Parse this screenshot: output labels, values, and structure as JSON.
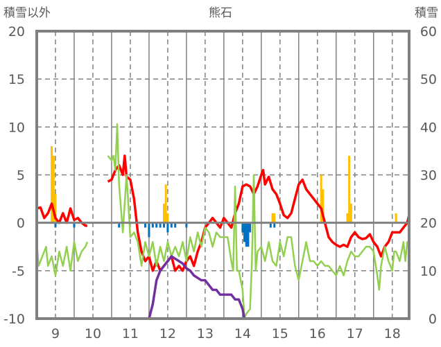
{
  "chart_data": {
    "type": "line",
    "title": "熊石",
    "ylabel_left": "積雪以外",
    "ylabel_right": "積雪",
    "xlim": [
      8.5,
      18.45
    ],
    "ylim_left": [
      -10,
      20
    ],
    "ylim_right": [
      0,
      60
    ],
    "xticks": [
      "9",
      "10",
      "11",
      "12",
      "13",
      "14",
      "15",
      "16",
      "17",
      "18"
    ],
    "yticks_left": [
      "20",
      "15",
      "10",
      "5",
      "0",
      "-5",
      "-10"
    ],
    "yticks_right": [
      "60",
      "50",
      "40",
      "30",
      "20",
      "10",
      "0"
    ],
    "grid": true,
    "colors": {
      "red": "#ff0000",
      "green": "#92d050",
      "purple": "#7030a0",
      "orange": "#ffc000",
      "blue": "#0070c0",
      "axis": "#808080"
    },
    "series": [
      {
        "name": "red",
        "axis": "left",
        "segments": [
          [
            [
              8.5,
              1.5
            ],
            [
              8.6,
              1.6
            ],
            [
              8.7,
              0.5
            ],
            [
              8.8,
              1
            ],
            [
              8.9,
              2
            ],
            [
              9.0,
              0.5
            ],
            [
              9.1,
              0
            ],
            [
              9.2,
              1
            ],
            [
              9.3,
              0
            ],
            [
              9.4,
              1.5
            ],
            [
              9.5,
              0.3
            ],
            [
              9.6,
              0.5
            ],
            [
              9.7,
              0
            ],
            [
              9.8,
              -0.3
            ],
            [
              9.85,
              -0.3
            ]
          ],
          [
            [
              10.4,
              4.3
            ],
            [
              10.5,
              4.5
            ],
            [
              10.6,
              5.5
            ],
            [
              10.7,
              6
            ],
            [
              10.8,
              5
            ],
            [
              10.85,
              7
            ],
            [
              10.9,
              4.8
            ],
            [
              11.0,
              4.5
            ],
            [
              11.1,
              2.5
            ],
            [
              11.2,
              -1
            ],
            [
              11.3,
              -3
            ],
            [
              11.4,
              -4
            ],
            [
              11.5,
              -3.5
            ],
            [
              11.6,
              -5
            ],
            [
              11.7,
              -4
            ],
            [
              11.8,
              -5
            ],
            [
              11.9,
              -4.5
            ],
            [
              12.0,
              -4
            ],
            [
              12.1,
              -3.5
            ],
            [
              12.2,
              -5
            ],
            [
              12.3,
              -4.5
            ],
            [
              12.4,
              -5
            ],
            [
              12.5,
              -4
            ],
            [
              12.6,
              -3.5
            ],
            [
              12.7,
              -4.5
            ],
            [
              12.8,
              -3
            ],
            [
              12.9,
              -2
            ],
            [
              13.0,
              -0.5
            ],
            [
              13.1,
              0
            ],
            [
              13.2,
              0.5
            ],
            [
              13.3,
              0
            ],
            [
              13.4,
              -0.5
            ],
            [
              13.5,
              0.5
            ],
            [
              13.6,
              0
            ],
            [
              13.7,
              -0.5
            ],
            [
              13.8,
              1
            ],
            [
              13.9,
              2
            ],
            [
              14.0,
              3.8
            ],
            [
              14.1,
              4
            ],
            [
              14.2,
              3.8
            ],
            [
              14.3,
              3
            ],
            [
              14.4,
              3.8
            ],
            [
              14.5,
              5
            ],
            [
              14.55,
              5.5
            ],
            [
              14.6,
              4
            ],
            [
              14.7,
              4.8
            ],
            [
              14.8,
              3.5
            ],
            [
              14.9,
              3
            ],
            [
              15.0,
              2
            ],
            [
              15.1,
              0.8
            ],
            [
              15.2,
              0.5
            ],
            [
              15.3,
              1
            ],
            [
              15.4,
              2.5
            ],
            [
              15.5,
              4
            ],
            [
              15.6,
              4.5
            ],
            [
              15.7,
              3.5
            ],
            [
              15.8,
              3
            ],
            [
              15.9,
              2.5
            ],
            [
              16.0,
              2
            ],
            [
              16.1,
              1.5
            ],
            [
              16.2,
              0
            ],
            [
              16.3,
              -1.5
            ],
            [
              16.4,
              -2
            ],
            [
              16.5,
              -2.3
            ],
            [
              16.6,
              -2.5
            ],
            [
              16.7,
              -2.3
            ],
            [
              16.8,
              -2.5
            ],
            [
              16.9,
              -1.5
            ],
            [
              17.0,
              -1
            ],
            [
              17.1,
              -1.5
            ],
            [
              17.2,
              -1.7
            ],
            [
              17.3,
              -1.6
            ],
            [
              17.4,
              -1.2
            ],
            [
              17.5,
              -2
            ],
            [
              17.6,
              -2.5
            ],
            [
              17.7,
              -3.5
            ],
            [
              17.8,
              -2.5
            ],
            [
              17.9,
              -2
            ],
            [
              18.0,
              -1
            ],
            [
              18.1,
              -1
            ],
            [
              18.2,
              -1
            ],
            [
              18.3,
              -0.5
            ],
            [
              18.4,
              0
            ],
            [
              18.45,
              0.8
            ]
          ]
        ]
      },
      {
        "name": "green",
        "axis": "left",
        "segments": [
          [
            [
              8.5,
              -2
            ],
            [
              8.55,
              -4.5
            ],
            [
              8.65,
              -3.5
            ],
            [
              8.75,
              -2.5
            ],
            [
              8.8,
              -4.5
            ],
            [
              8.9,
              -3.5
            ],
            [
              9.0,
              -5.5
            ],
            [
              9.1,
              -3
            ],
            [
              9.2,
              -4.5
            ],
            [
              9.3,
              -2.5
            ],
            [
              9.4,
              -5
            ],
            [
              9.5,
              -2
            ],
            [
              9.6,
              -4
            ],
            [
              9.7,
              -3
            ],
            [
              9.8,
              -2.5
            ],
            [
              9.85,
              -2
            ]
          ],
          [
            [
              10.4,
              7
            ],
            [
              10.5,
              6.5
            ],
            [
              10.55,
              7
            ],
            [
              10.6,
              5.5
            ],
            [
              10.65,
              10.3
            ],
            [
              10.7,
              4
            ],
            [
              10.8,
              -1
            ],
            [
              10.9,
              5
            ],
            [
              11.0,
              -1.5
            ],
            [
              11.1,
              -1
            ],
            [
              11.2,
              -2
            ],
            [
              11.3,
              -4.5
            ],
            [
              11.4,
              -2
            ],
            [
              11.5,
              -3.5
            ],
            [
              11.6,
              -2
            ],
            [
              11.7,
              -4.5
            ],
            [
              11.8,
              -2.5
            ],
            [
              11.9,
              -4
            ],
            [
              12.0,
              -2
            ],
            [
              12.1,
              -3.5
            ],
            [
              12.2,
              -2.5
            ],
            [
              12.3,
              -3.5
            ],
            [
              12.4,
              -2
            ],
            [
              12.5,
              -4
            ],
            [
              12.6,
              -1.5
            ],
            [
              12.7,
              -3
            ],
            [
              12.8,
              -1
            ],
            [
              12.9,
              -2.5
            ],
            [
              13.0,
              -0.5
            ],
            [
              13.1,
              -1
            ],
            [
              13.2,
              -2.5
            ],
            [
              13.3,
              -1
            ],
            [
              13.4,
              -1.5
            ],
            [
              13.5,
              -1.5
            ],
            [
              13.6,
              -1.5
            ],
            [
              13.7,
              -4
            ],
            [
              13.75,
              -5
            ],
            [
              13.8,
              3.8
            ],
            [
              13.85,
              -5
            ],
            [
              13.9,
              -5
            ],
            [
              14.0,
              -7
            ],
            [
              14.05,
              -9.9
            ],
            [
              14.1,
              -9.5
            ],
            [
              14.2,
              -9
            ],
            [
              14.25,
              -4
            ],
            [
              14.3,
              5
            ],
            [
              14.35,
              -5
            ],
            [
              14.4,
              -3
            ],
            [
              14.5,
              -2.5
            ],
            [
              14.6,
              -4
            ],
            [
              14.7,
              -2
            ],
            [
              14.8,
              -4
            ],
            [
              14.9,
              -4.5
            ],
            [
              15.0,
              -2
            ],
            [
              15.1,
              -3.5
            ],
            [
              15.2,
              -1.5
            ],
            [
              15.3,
              -1.5
            ],
            [
              15.4,
              -4.5
            ],
            [
              15.5,
              -6
            ],
            [
              15.6,
              -4
            ],
            [
              15.7,
              -2
            ],
            [
              15.8,
              -4
            ],
            [
              15.9,
              -4
            ],
            [
              16.0,
              -4.5
            ],
            [
              16.1,
              -4
            ],
            [
              16.2,
              -4.5
            ],
            [
              16.3,
              -4.5
            ],
            [
              16.4,
              -5
            ],
            [
              16.5,
              -5.5
            ],
            [
              16.6,
              -4.5
            ],
            [
              16.7,
              -5.5
            ],
            [
              16.8,
              -4
            ],
            [
              16.9,
              -3
            ],
            [
              17.0,
              -3.5
            ],
            [
              17.1,
              -3.5
            ],
            [
              17.2,
              -3
            ],
            [
              17.3,
              -2.5
            ],
            [
              17.4,
              -2.5
            ],
            [
              17.5,
              -3
            ],
            [
              17.6,
              -5.5
            ],
            [
              17.65,
              -7
            ],
            [
              17.7,
              -4.5
            ],
            [
              17.8,
              -2.5
            ],
            [
              17.9,
              -4
            ],
            [
              18.0,
              -5
            ],
            [
              18.05,
              -3
            ],
            [
              18.1,
              -3
            ],
            [
              18.2,
              -4
            ],
            [
              18.3,
              -2
            ],
            [
              18.35,
              -4
            ],
            [
              18.4,
              -2
            ],
            [
              18.45,
              -2.5
            ]
          ]
        ]
      },
      {
        "name": "purple",
        "axis": "right",
        "segments": [
          [
            [
              8.5,
              0
            ],
            [
              9.85,
              0
            ]
          ],
          [
            [
              10.1,
              0
            ],
            [
              11.5,
              0
            ],
            [
              11.6,
              3
            ],
            [
              11.7,
              8
            ],
            [
              11.8,
              10
            ],
            [
              11.9,
              11
            ],
            [
              12.0,
              12
            ],
            [
              12.1,
              13
            ],
            [
              12.2,
              12.5
            ],
            [
              12.3,
              12
            ],
            [
              12.4,
              11.5
            ],
            [
              12.5,
              10.5
            ],
            [
              12.6,
              10
            ],
            [
              12.7,
              9
            ],
            [
              12.8,
              8.5
            ],
            [
              12.9,
              8
            ],
            [
              13.0,
              8
            ],
            [
              13.1,
              7
            ],
            [
              13.2,
              6
            ],
            [
              13.3,
              6
            ],
            [
              13.4,
              5
            ],
            [
              13.7,
              5
            ],
            [
              13.8,
              4
            ],
            [
              13.9,
              4
            ],
            [
              14.0,
              2
            ],
            [
              14.05,
              0
            ],
            [
              18.45,
              0
            ]
          ]
        ]
      }
    ],
    "bars": [
      {
        "name": "orange",
        "axis": "left",
        "points": [
          [
            8.9,
            8
          ],
          [
            8.95,
            7
          ],
          [
            9.0,
            3
          ],
          [
            11.9,
            2
          ],
          [
            11.95,
            4
          ],
          [
            12.0,
            1
          ],
          [
            14.8,
            1
          ],
          [
            14.85,
            1
          ],
          [
            16.1,
            5
          ],
          [
            16.15,
            3.5
          ],
          [
            16.8,
            1
          ],
          [
            16.85,
            7
          ],
          [
            16.9,
            2
          ],
          [
            18.1,
            1
          ]
        ]
      },
      {
        "name": "blue",
        "axis": "left",
        "points": [
          [
            9.0,
            -0.5
          ],
          [
            9.5,
            -0.5
          ],
          [
            10.7,
            -0.5
          ],
          [
            11.4,
            -0.5
          ],
          [
            11.5,
            -1.5
          ],
          [
            11.6,
            -0.5
          ],
          [
            11.7,
            -0.5
          ],
          [
            11.8,
            -0.5
          ],
          [
            11.9,
            -0.5
          ],
          [
            12.0,
            -1
          ],
          [
            12.1,
            -0.5
          ],
          [
            12.2,
            -0.5
          ],
          [
            12.5,
            -0.5
          ],
          [
            14.0,
            -1
          ],
          [
            14.05,
            -2
          ],
          [
            14.1,
            -2.5
          ],
          [
            14.15,
            -2.5
          ],
          [
            14.2,
            -1
          ],
          [
            14.75,
            -0.5
          ],
          [
            14.85,
            -0.5
          ]
        ]
      }
    ]
  }
}
